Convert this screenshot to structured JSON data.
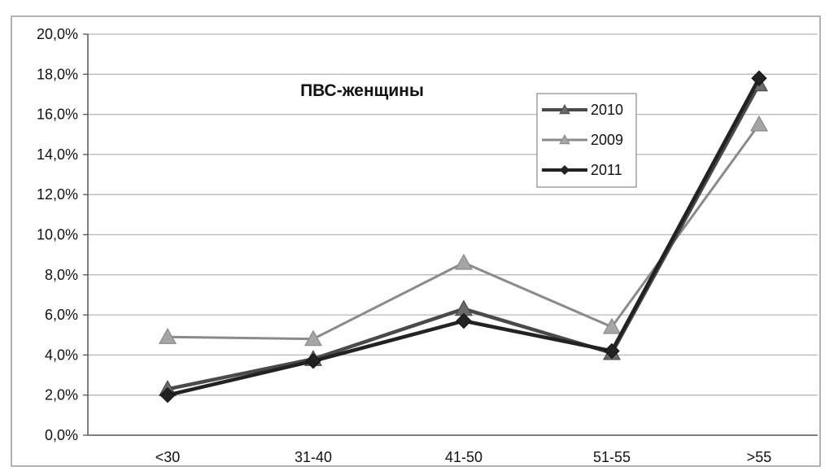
{
  "chart_data": {
    "type": "line",
    "title": "ПВС-женщины",
    "xlabel": "",
    "ylabel": "",
    "categories": [
      "<30",
      "31-40",
      "41-50",
      "51-55",
      ">55"
    ],
    "yticks": [
      "0,0%",
      "2,0%",
      "4,0%",
      "6,0%",
      "8,0%",
      "10,0%",
      "12,0%",
      "14,0%",
      "16,0%",
      "18,0%",
      "20,0%"
    ],
    "ylim": [
      0,
      20
    ],
    "grid": true,
    "legend_position": "top-right",
    "series": [
      {
        "name": "2010",
        "values": [
          2.3,
          3.8,
          6.3,
          4.1,
          17.5
        ],
        "color": "#4a4a4a",
        "marker": "triangle"
      },
      {
        "name": "2009",
        "values": [
          4.9,
          4.8,
          8.6,
          5.4,
          15.5
        ],
        "color": "#8a8a8a",
        "marker": "triangle"
      },
      {
        "name": "2011",
        "values": [
          2.0,
          3.7,
          5.7,
          4.2,
          17.8
        ],
        "color": "#222222",
        "marker": "diamond"
      }
    ]
  }
}
